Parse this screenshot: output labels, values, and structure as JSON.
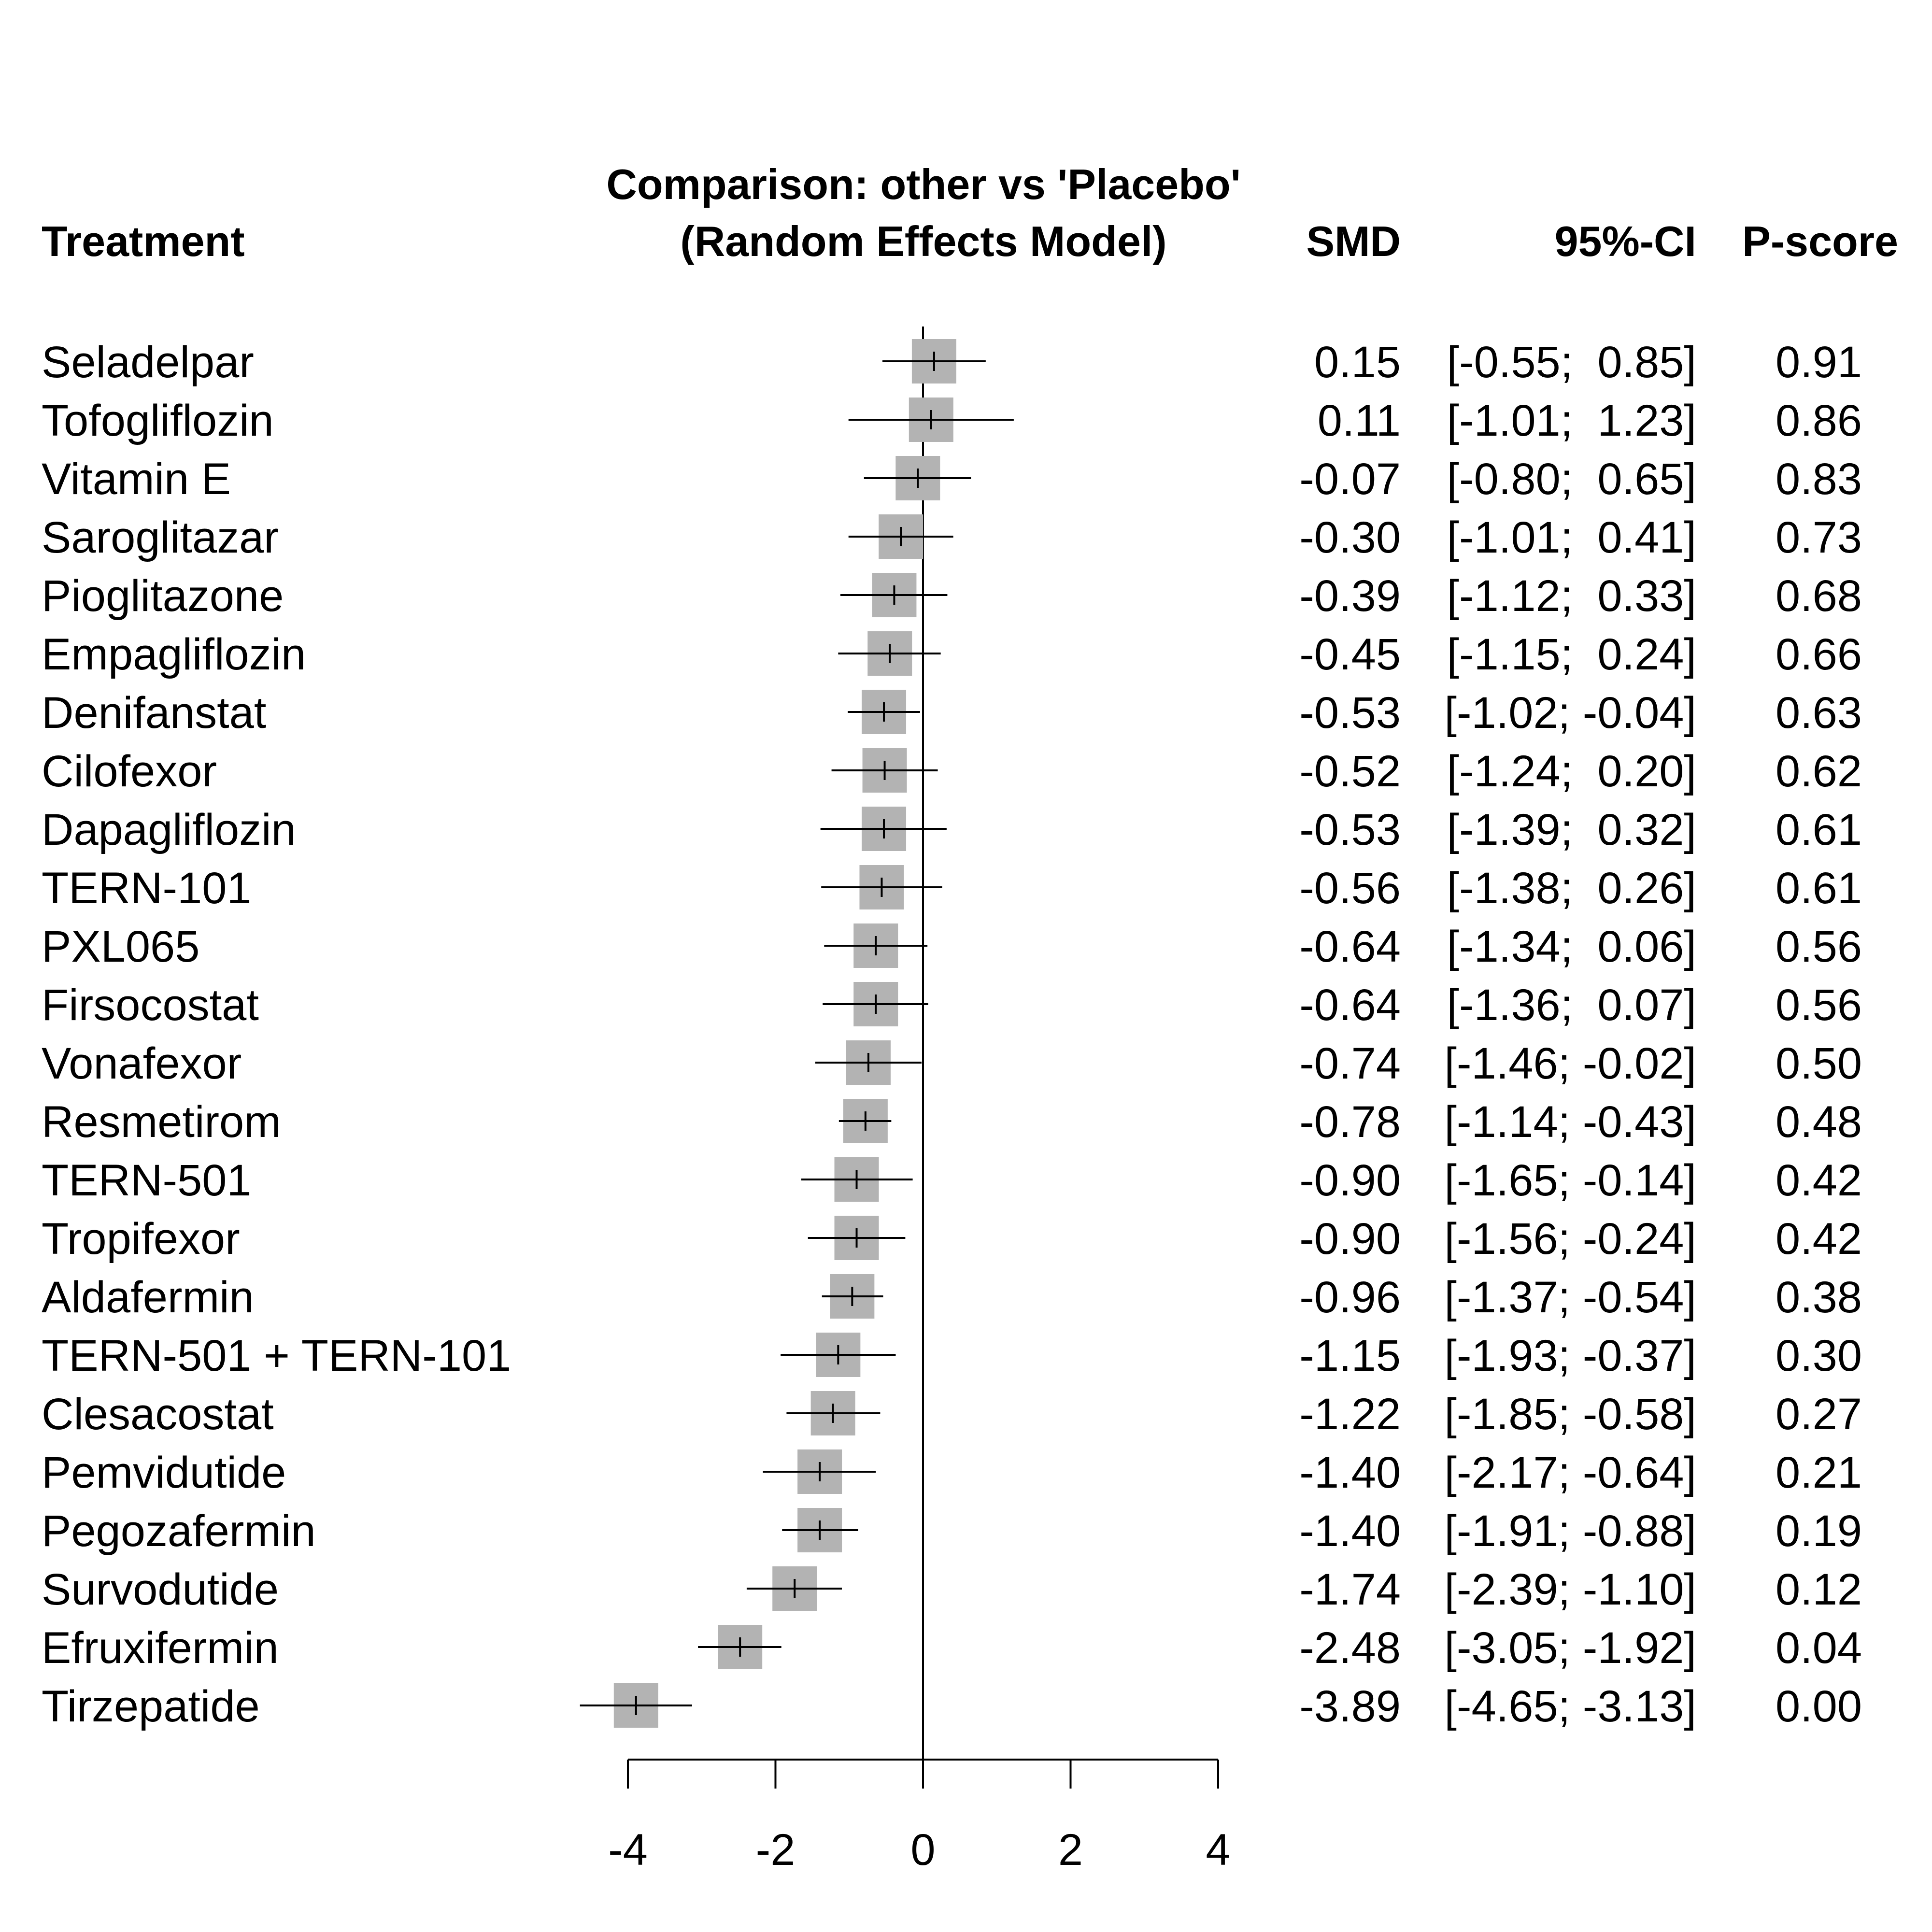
{
  "chart_data": {
    "type": "forest",
    "title_line1": "Comparison: other vs 'Placebo'",
    "title_line2": "(Random Effects Model)",
    "columns": {
      "treatment": "Treatment",
      "smd": "SMD",
      "ci": "95%-CI",
      "pscore": "P-score"
    },
    "xlim": [
      -4,
      4
    ],
    "xticks": [
      -4,
      -2,
      0,
      2,
      4
    ],
    "xtick_labels": [
      "-4",
      "-2",
      "0",
      "2",
      "4"
    ],
    "reference_line": 0,
    "box_color": "#b3b3b3",
    "rows": [
      {
        "treatment": "Seladelpar",
        "smd": 0.15,
        "lower": -0.55,
        "upper": 0.85,
        "smd_text": "0.15",
        "ci_text": "[-0.55;  0.85]",
        "pscore": "0.91"
      },
      {
        "treatment": "Tofogliflozin",
        "smd": 0.11,
        "lower": -1.01,
        "upper": 1.23,
        "smd_text": "0.11",
        "ci_text": "[-1.01;  1.23]",
        "pscore": "0.86"
      },
      {
        "treatment": "Vitamin E",
        "smd": -0.07,
        "lower": -0.8,
        "upper": 0.65,
        "smd_text": "-0.07",
        "ci_text": "[-0.80;  0.65]",
        "pscore": "0.83"
      },
      {
        "treatment": "Saroglitazar",
        "smd": -0.3,
        "lower": -1.01,
        "upper": 0.41,
        "smd_text": "-0.30",
        "ci_text": "[-1.01;  0.41]",
        "pscore": "0.73"
      },
      {
        "treatment": "Pioglitazone",
        "smd": -0.39,
        "lower": -1.12,
        "upper": 0.33,
        "smd_text": "-0.39",
        "ci_text": "[-1.12;  0.33]",
        "pscore": "0.68"
      },
      {
        "treatment": "Empagliflozin",
        "smd": -0.45,
        "lower": -1.15,
        "upper": 0.24,
        "smd_text": "-0.45",
        "ci_text": "[-1.15;  0.24]",
        "pscore": "0.66"
      },
      {
        "treatment": "Denifanstat",
        "smd": -0.53,
        "lower": -1.02,
        "upper": -0.04,
        "smd_text": "-0.53",
        "ci_text": "[-1.02; -0.04]",
        "pscore": "0.63"
      },
      {
        "treatment": "Cilofexor",
        "smd": -0.52,
        "lower": -1.24,
        "upper": 0.2,
        "smd_text": "-0.52",
        "ci_text": "[-1.24;  0.20]",
        "pscore": "0.62"
      },
      {
        "treatment": "Dapagliflozin",
        "smd": -0.53,
        "lower": -1.39,
        "upper": 0.32,
        "smd_text": "-0.53",
        "ci_text": "[-1.39;  0.32]",
        "pscore": "0.61"
      },
      {
        "treatment": "TERN-101",
        "smd": -0.56,
        "lower": -1.38,
        "upper": 0.26,
        "smd_text": "-0.56",
        "ci_text": "[-1.38;  0.26]",
        "pscore": "0.61"
      },
      {
        "treatment": "PXL065",
        "smd": -0.64,
        "lower": -1.34,
        "upper": 0.06,
        "smd_text": "-0.64",
        "ci_text": "[-1.34;  0.06]",
        "pscore": "0.56"
      },
      {
        "treatment": "Firsocostat",
        "smd": -0.64,
        "lower": -1.36,
        "upper": 0.07,
        "smd_text": "-0.64",
        "ci_text": "[-1.36;  0.07]",
        "pscore": "0.56"
      },
      {
        "treatment": "Vonafexor",
        "smd": -0.74,
        "lower": -1.46,
        "upper": -0.02,
        "smd_text": "-0.74",
        "ci_text": "[-1.46; -0.02]",
        "pscore": "0.50"
      },
      {
        "treatment": "Resmetirom",
        "smd": -0.78,
        "lower": -1.14,
        "upper": -0.43,
        "smd_text": "-0.78",
        "ci_text": "[-1.14; -0.43]",
        "pscore": "0.48"
      },
      {
        "treatment": "TERN-501",
        "smd": -0.9,
        "lower": -1.65,
        "upper": -0.14,
        "smd_text": "-0.90",
        "ci_text": "[-1.65; -0.14]",
        "pscore": "0.42"
      },
      {
        "treatment": "Tropifexor",
        "smd": -0.9,
        "lower": -1.56,
        "upper": -0.24,
        "smd_text": "-0.90",
        "ci_text": "[-1.56; -0.24]",
        "pscore": "0.42"
      },
      {
        "treatment": "Aldafermin",
        "smd": -0.96,
        "lower": -1.37,
        "upper": -0.54,
        "smd_text": "-0.96",
        "ci_text": "[-1.37; -0.54]",
        "pscore": "0.38"
      },
      {
        "treatment": "TERN-501 + TERN-101",
        "smd": -1.15,
        "lower": -1.93,
        "upper": -0.37,
        "smd_text": "-1.15",
        "ci_text": "[-1.93; -0.37]",
        "pscore": "0.30"
      },
      {
        "treatment": "Clesacostat",
        "smd": -1.22,
        "lower": -1.85,
        "upper": -0.58,
        "smd_text": "-1.22",
        "ci_text": "[-1.85; -0.58]",
        "pscore": "0.27"
      },
      {
        "treatment": "Pemvidutide",
        "smd": -1.4,
        "lower": -2.17,
        "upper": -0.64,
        "smd_text": "-1.40",
        "ci_text": "[-2.17; -0.64]",
        "pscore": "0.21"
      },
      {
        "treatment": "Pegozafermin",
        "smd": -1.4,
        "lower": -1.91,
        "upper": -0.88,
        "smd_text": "-1.40",
        "ci_text": "[-1.91; -0.88]",
        "pscore": "0.19"
      },
      {
        "treatment": "Survodutide",
        "smd": -1.74,
        "lower": -2.39,
        "upper": -1.1,
        "smd_text": "-1.74",
        "ci_text": "[-2.39; -1.10]",
        "pscore": "0.12"
      },
      {
        "treatment": "Efruxifermin",
        "smd": -2.48,
        "lower": -3.05,
        "upper": -1.92,
        "smd_text": "-2.48",
        "ci_text": "[-3.05; -1.92]",
        "pscore": "0.04"
      },
      {
        "treatment": "Tirzepatide",
        "smd": -3.89,
        "lower": -4.65,
        "upper": -3.13,
        "smd_text": "-3.89",
        "ci_text": "[-4.65; -3.13]",
        "pscore": "0.00"
      }
    ]
  }
}
